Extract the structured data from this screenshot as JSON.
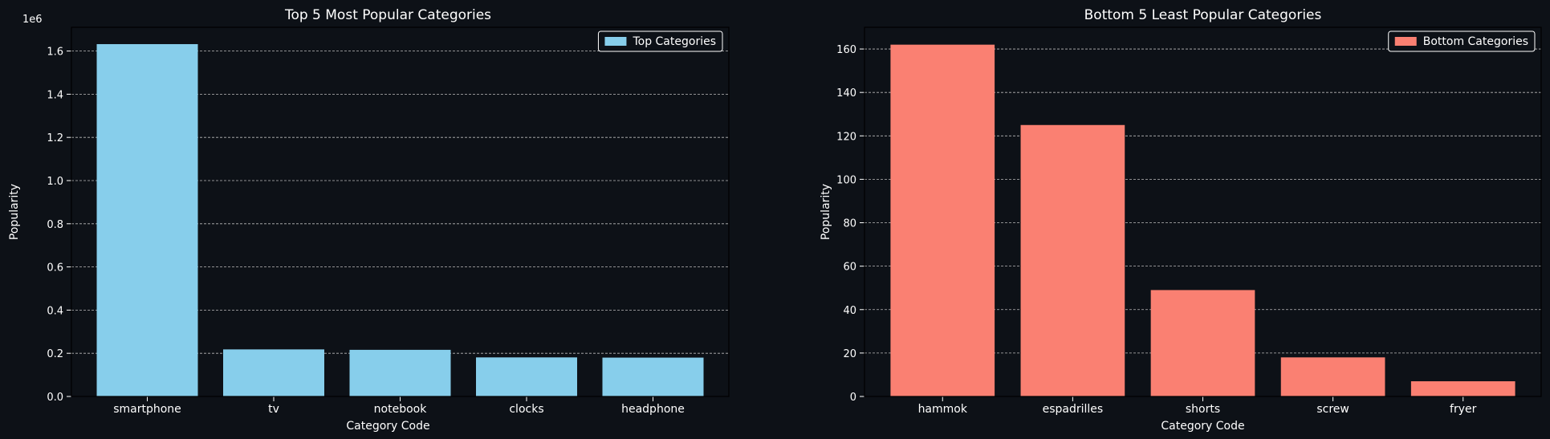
{
  "figure": {
    "background": "#0d1117",
    "text_color": "#ffffff"
  },
  "chart_data": [
    {
      "type": "bar",
      "title": "Top 5 Most Popular Categories",
      "xlabel": "Category Code",
      "ylabel": "Popularity",
      "y_offset_label": "1e6",
      "categories": [
        "smartphone",
        "tv",
        "notebook",
        "clocks",
        "headphone"
      ],
      "values": [
        1632000,
        218000,
        216000,
        181000,
        180000
      ],
      "ylim": [
        0,
        1710000
      ],
      "yticks": [
        0,
        200000,
        400000,
        600000,
        800000,
        1000000,
        1200000,
        1400000,
        1600000
      ],
      "ytick_labels": [
        "0.0",
        "0.2",
        "0.4",
        "0.6",
        "0.8",
        "1.0",
        "1.2",
        "1.4",
        "1.6"
      ],
      "legend": "Top Categories",
      "legend_position": "upper right",
      "color": "#87ceeb",
      "grid": "y"
    },
    {
      "type": "bar",
      "title": "Bottom 5 Least Popular Categories",
      "xlabel": "Category Code",
      "ylabel": "Popularity",
      "categories": [
        "hammok",
        "espadrilles",
        "shorts",
        "screw",
        "fryer"
      ],
      "values": [
        162,
        125,
        49,
        18,
        7
      ],
      "ylim": [
        0,
        170
      ],
      "yticks": [
        0,
        20,
        40,
        60,
        80,
        100,
        120,
        140,
        160
      ],
      "ytick_labels": [
        "0",
        "20",
        "40",
        "60",
        "80",
        "100",
        "120",
        "140",
        "160"
      ],
      "legend": "Bottom Categories",
      "legend_position": "upper right",
      "color": "#fa8072",
      "grid": "y"
    }
  ]
}
